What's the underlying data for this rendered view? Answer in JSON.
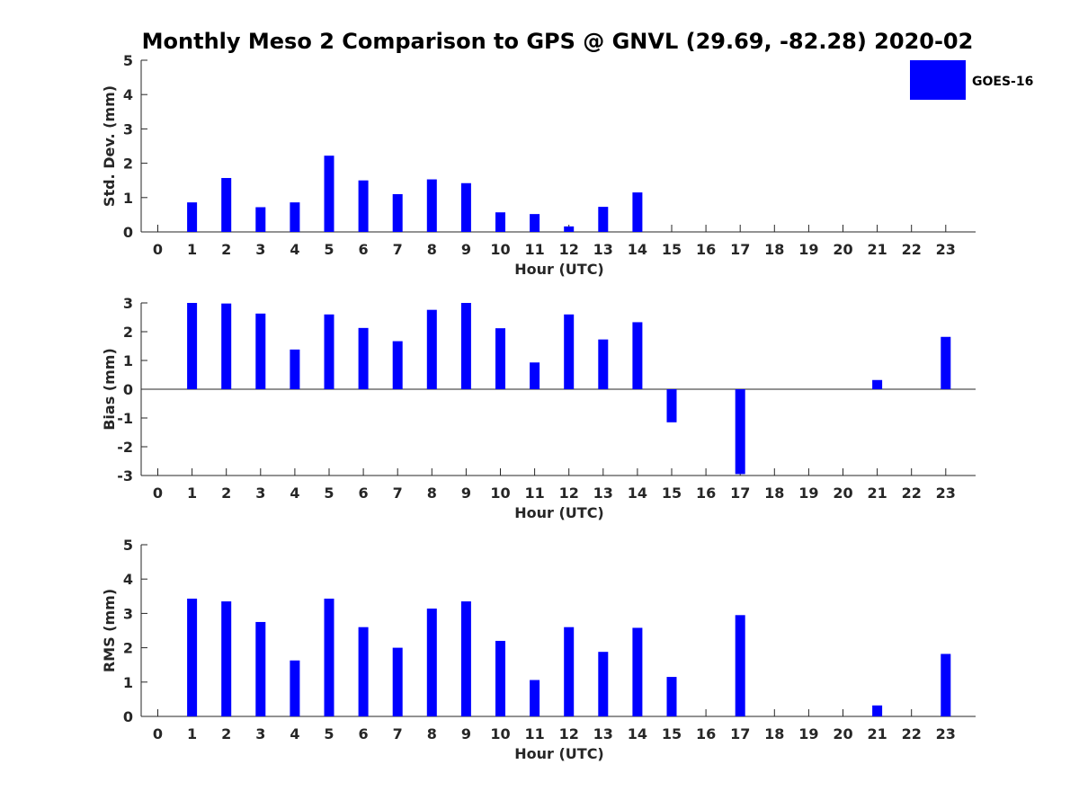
{
  "chart_data": {
    "type": "bar",
    "title": "Monthly Meso 2 Comparison to GPS @ GNVL (29.69, -82.28) 2020-02",
    "legend": {
      "position": "top-right",
      "entries": [
        {
          "name": "GOES-16",
          "color": "#0000ff"
        }
      ]
    },
    "categories": [
      0,
      1,
      2,
      3,
      4,
      5,
      6,
      7,
      8,
      9,
      10,
      11,
      12,
      13,
      14,
      15,
      16,
      17,
      18,
      19,
      20,
      21,
      22,
      23
    ],
    "panels": [
      {
        "id": "std",
        "ylabel": "Std. Dev. (mm)",
        "xlabel": "Hour (UTC)",
        "ylim": [
          0,
          5
        ],
        "yticks": [
          0,
          1,
          2,
          3,
          4,
          5
        ],
        "series": [
          {
            "name": "GOES-16",
            "values": [
              null,
              0.86,
              1.57,
              0.72,
              0.86,
              2.22,
              1.5,
              1.1,
              1.53,
              1.42,
              0.57,
              0.52,
              0.16,
              0.73,
              1.15,
              null,
              null,
              null,
              null,
              null,
              null,
              null,
              null,
              null
            ]
          }
        ]
      },
      {
        "id": "bias",
        "ylabel": "Bias (mm)",
        "xlabel": "Hour (UTC)",
        "ylim": [
          -3,
          3
        ],
        "yticks": [
          -3,
          -2,
          -1,
          0,
          1,
          2,
          3
        ],
        "series": [
          {
            "name": "GOES-16",
            "values": [
              null,
              3.0,
              2.98,
              2.63,
              1.38,
              2.6,
              2.13,
              1.67,
              2.76,
              3.0,
              2.12,
              0.93,
              2.6,
              1.73,
              2.33,
              -1.15,
              null,
              -2.95,
              null,
              null,
              null,
              0.32,
              null,
              1.82
            ]
          }
        ]
      },
      {
        "id": "rms",
        "ylabel": "RMS (mm)",
        "xlabel": "Hour (UTC)",
        "ylim": [
          0,
          5
        ],
        "yticks": [
          0,
          1,
          2,
          3,
          4,
          5
        ],
        "series": [
          {
            "name": "GOES-16",
            "values": [
              null,
              3.43,
              3.35,
              2.75,
              1.63,
              3.43,
              2.6,
              2.0,
              3.14,
              3.35,
              2.2,
              1.06,
              2.6,
              1.88,
              2.58,
              1.15,
              null,
              2.95,
              null,
              null,
              null,
              0.32,
              null,
              1.82
            ]
          }
        ]
      }
    ]
  }
}
